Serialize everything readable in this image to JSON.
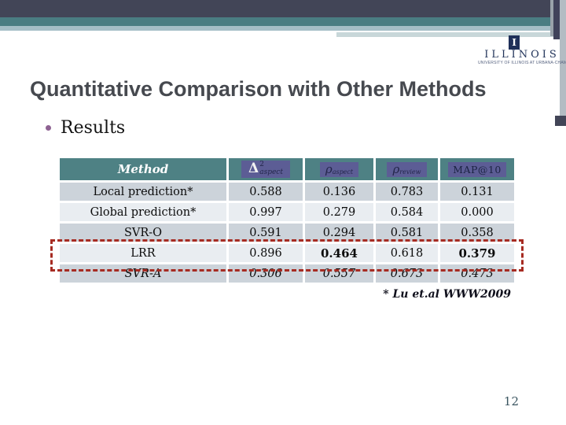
{
  "slide": {
    "title": "Quantitative Comparison with Other Methods",
    "bullet_text": "Results",
    "footnote": "* Lu et.al WWW2009",
    "page_number": "12"
  },
  "logo": {
    "mark_letter": "I",
    "wordmark": "ILLINOIS",
    "tagline": "UNIVERSITY OF ILLINOIS AT URBANA-CHAMPAIGN"
  },
  "table": {
    "header": {
      "method_label": "Method",
      "delta": {
        "symbol": "Δ",
        "sup": "2",
        "sub": "aspect"
      },
      "rho_aspect": {
        "symbol": "ρ",
        "sub": "aspect"
      },
      "rho_review": {
        "symbol": "ρ",
        "sub": "review"
      },
      "map_label": "MAP@10"
    },
    "rows": [
      {
        "method": "Local prediction*",
        "values": [
          "0.588",
          "0.136",
          "0.783",
          "0.131"
        ]
      },
      {
        "method": "Global prediction*",
        "values": [
          "0.997",
          "0.279",
          "0.584",
          "0.000"
        ]
      },
      {
        "method": "SVR-O",
        "values": [
          "0.591",
          "0.294",
          "0.581",
          "0.358"
        ]
      },
      {
        "method": "LRR",
        "values": [
          "0.896",
          "0.464",
          "0.618",
          "0.379"
        ],
        "bold_values": [
          1,
          3
        ],
        "highlighted": true
      },
      {
        "method": "SVR-A",
        "values": [
          "0.306",
          "0.557",
          "0.673",
          "0.473"
        ],
        "italic": true
      }
    ]
  },
  "colors": {
    "top_band_navy": "#424557",
    "top_band_teal": "#4a7d82",
    "top_band_light": "#a5bec6",
    "table_header_teal": "#4e8184",
    "symbol_box_purple": "#5c5d95",
    "row_shade_dark": "#ccd3da",
    "row_shade_light": "#e9edf1",
    "highlight_red": "#a62b22",
    "logo_navy": "#1f3059",
    "title_gray": "#46494f",
    "bullet_plum": "#8e6292"
  }
}
